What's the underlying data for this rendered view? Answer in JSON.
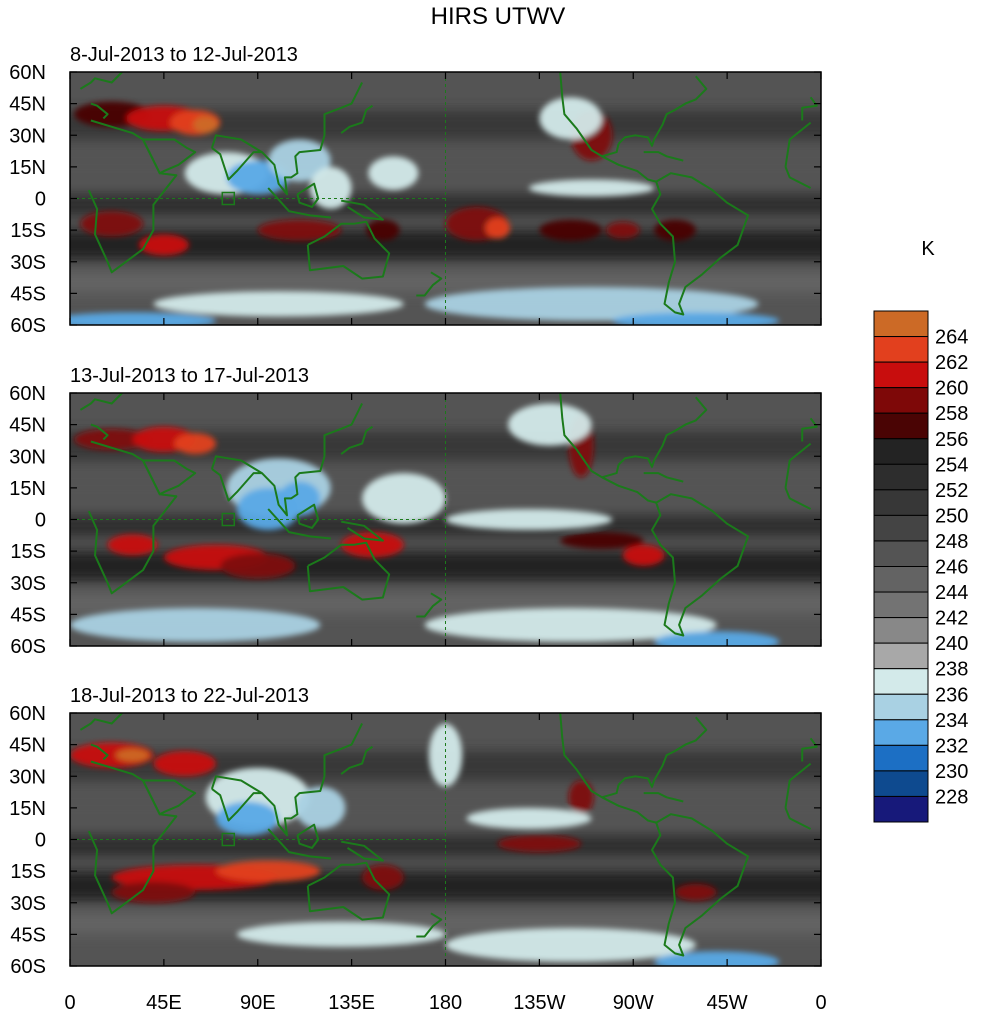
{
  "title": "HIRS UTWV",
  "unit_label": "K",
  "panels": [
    {
      "subtitle": "8-Jul-2013 to 12-Jul-2013"
    },
    {
      "subtitle": "13-Jul-2013 to 17-Jul-2013"
    },
    {
      "subtitle": "18-Jul-2013 to 22-Jul-2013"
    }
  ],
  "lat_ticks": [
    "60N",
    "45N",
    "30N",
    "15N",
    "0",
    "15S",
    "30S",
    "45S",
    "60S"
  ],
  "lon_ticks": [
    "0",
    "45E",
    "90E",
    "135E",
    "180",
    "135W",
    "90W",
    "45W",
    "0"
  ],
  "colorbar": {
    "labels": [
      "264",
      "262",
      "260",
      "258",
      "256",
      "254",
      "252",
      "250",
      "248",
      "246",
      "244",
      "242",
      "240",
      "238",
      "236",
      "234",
      "232",
      "230",
      "228"
    ],
    "colors": [
      "#cc6a26",
      "#e2401e",
      "#c80d0d",
      "#7e0808",
      "#4a0404",
      "#232323",
      "#2d2d2d",
      "#373737",
      "#444444",
      "#545454",
      "#636363",
      "#737373",
      "#888888",
      "#a8a8a8",
      "#d3eaea",
      "#a9d1e3",
      "#5aa9e6",
      "#1c6fc4",
      "#0e4a8f",
      "#17197a"
    ]
  },
  "map_colors": {
    "coast": "#1b7a1b",
    "frame": "#000000"
  },
  "map_data": {
    "lon_range": [
      0,
      360
    ],
    "lat_range": [
      -60,
      60
    ],
    "projection": "cylindrical-equidistant",
    "variable": "upper tropospheric water vapor brightness temperature",
    "units": "K"
  }
}
